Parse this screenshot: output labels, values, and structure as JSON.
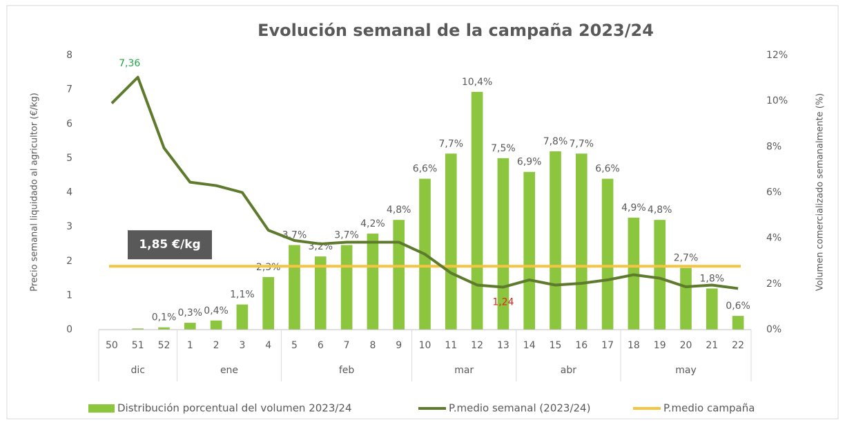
{
  "chart_data": {
    "type": "bar-line",
    "title": "Evolución semanal de la campaña 2023/24",
    "y_label": "Precio  semanal liquidado al agricultor (€/kg)",
    "y2_label": "Volumen comercializado semanalmente (%)",
    "categories": [
      "50",
      "51",
      "52",
      "1",
      "2",
      "3",
      "4",
      "5",
      "6",
      "7",
      "8",
      "9",
      "10",
      "11",
      "12",
      "13",
      "14",
      "15",
      "16",
      "17",
      "18",
      "19",
      "20",
      "21",
      "22"
    ],
    "groups": [
      {
        "label": "dic",
        "count": 3
      },
      {
        "label": "ene",
        "count": 4
      },
      {
        "label": "feb",
        "count": 5
      },
      {
        "label": "mar",
        "count": 4
      },
      {
        "label": "abr",
        "count": 4
      },
      {
        "label": "may",
        "count": 5
      }
    ],
    "series": [
      {
        "name": "Distribución  porcentual del volumen 2023/24",
        "type": "bar",
        "axis": "y2",
        "color": "#8cc63e",
        "values": [
          0,
          0.05,
          0.1,
          0.3,
          0.4,
          1.1,
          2.3,
          3.7,
          3.2,
          3.7,
          4.2,
          4.8,
          6.6,
          7.7,
          10.4,
          7.5,
          6.9,
          7.8,
          7.7,
          6.6,
          4.9,
          4.8,
          2.7,
          1.8,
          0.6
        ],
        "value_labels": [
          null,
          null,
          "0,1%",
          "0,3%",
          "0,4%",
          "1,1%",
          "2,3%",
          "3,7%",
          "3,2%",
          "3,7%",
          "4,2%",
          "4,8%",
          "6,6%",
          "7,7%",
          "10,4%",
          "7,5%",
          "6,9%",
          "7,8%",
          "7,7%",
          "6,6%",
          "4,9%",
          "4,8%",
          "2,7%",
          "1,8%",
          "0,6%"
        ]
      },
      {
        "name": "P.medio semanal (2023/24)",
        "type": "line",
        "axis": "y",
        "color": "#5e7a2c",
        "values": [
          6.6,
          7.36,
          5.3,
          4.3,
          4.2,
          4.0,
          2.9,
          2.6,
          2.5,
          2.55,
          2.55,
          2.55,
          2.2,
          1.65,
          1.3,
          1.24,
          1.45,
          1.3,
          1.35,
          1.45,
          1.6,
          1.5,
          1.25,
          1.3,
          1.2
        ],
        "value_labels": [
          null,
          "7,36",
          null,
          null,
          null,
          null,
          null,
          null,
          null,
          null,
          null,
          null,
          null,
          null,
          null,
          "1,24",
          null,
          null,
          null,
          null,
          null,
          null,
          null,
          null,
          null
        ],
        "label_colors": [
          null,
          "#21a64a",
          null,
          null,
          null,
          null,
          null,
          null,
          null,
          null,
          null,
          null,
          null,
          null,
          null,
          "#e0241b",
          null,
          null,
          null,
          null,
          null,
          null,
          null,
          null,
          null
        ]
      }
    ],
    "average": {
      "name": "P.medio campaña",
      "value": 1.85,
      "label": "1,85 €/kg",
      "color": "#f6c443"
    },
    "ylim": [
      0,
      8
    ],
    "yticks": [
      0,
      1,
      2,
      3,
      4,
      5,
      6,
      7,
      8
    ],
    "y2lim": [
      0,
      12
    ],
    "y2ticks": [
      {
        "value": 0,
        "label": "0%"
      },
      {
        "value": 2,
        "label": "2%"
      },
      {
        "value": 4,
        "label": "4%"
      },
      {
        "value": 6,
        "label": "6%"
      },
      {
        "value": 8,
        "label": "8%"
      },
      {
        "value": 10,
        "label": "10%"
      },
      {
        "value": 12,
        "label": "12%"
      }
    ],
    "grid": false
  }
}
